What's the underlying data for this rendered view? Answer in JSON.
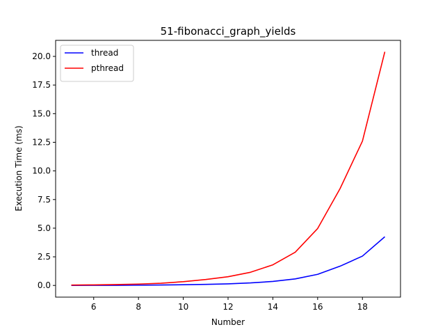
{
  "chart_data": {
    "type": "line",
    "title": "51-fibonacci_graph_yields",
    "xlabel": "Number",
    "ylabel": "Execution Time (ms)",
    "xlim": [
      4.3,
      19.7
    ],
    "ylim": [
      -1.02,
      21.4
    ],
    "x_ticks": [
      6,
      8,
      10,
      12,
      14,
      16,
      18
    ],
    "y_ticks": [
      0.0,
      2.5,
      5.0,
      7.5,
      10.0,
      12.5,
      15.0,
      17.5,
      20.0
    ],
    "x_tick_labels": [
      "6",
      "8",
      "10",
      "12",
      "14",
      "16",
      "18"
    ],
    "y_tick_labels": [
      "0.0",
      "2.5",
      "5.0",
      "7.5",
      "10.0",
      "12.5",
      "15.0",
      "17.5",
      "20.0"
    ],
    "legend_position": "top-left",
    "grid": false,
    "x": [
      5,
      6,
      7,
      8,
      9,
      10,
      11,
      12,
      13,
      14,
      15,
      16,
      17,
      18,
      19
    ],
    "series": [
      {
        "name": "thread",
        "color": "#0000ff",
        "values": [
          0.0,
          0.01,
          0.01,
          0.02,
          0.04,
          0.06,
          0.09,
          0.14,
          0.22,
          0.35,
          0.57,
          0.97,
          1.68,
          2.56,
          4.25
        ]
      },
      {
        "name": "pthread",
        "color": "#ff0000",
        "values": [
          0.03,
          0.05,
          0.08,
          0.12,
          0.19,
          0.33,
          0.52,
          0.76,
          1.15,
          1.8,
          2.9,
          4.97,
          8.45,
          12.6,
          20.4
        ]
      }
    ]
  }
}
